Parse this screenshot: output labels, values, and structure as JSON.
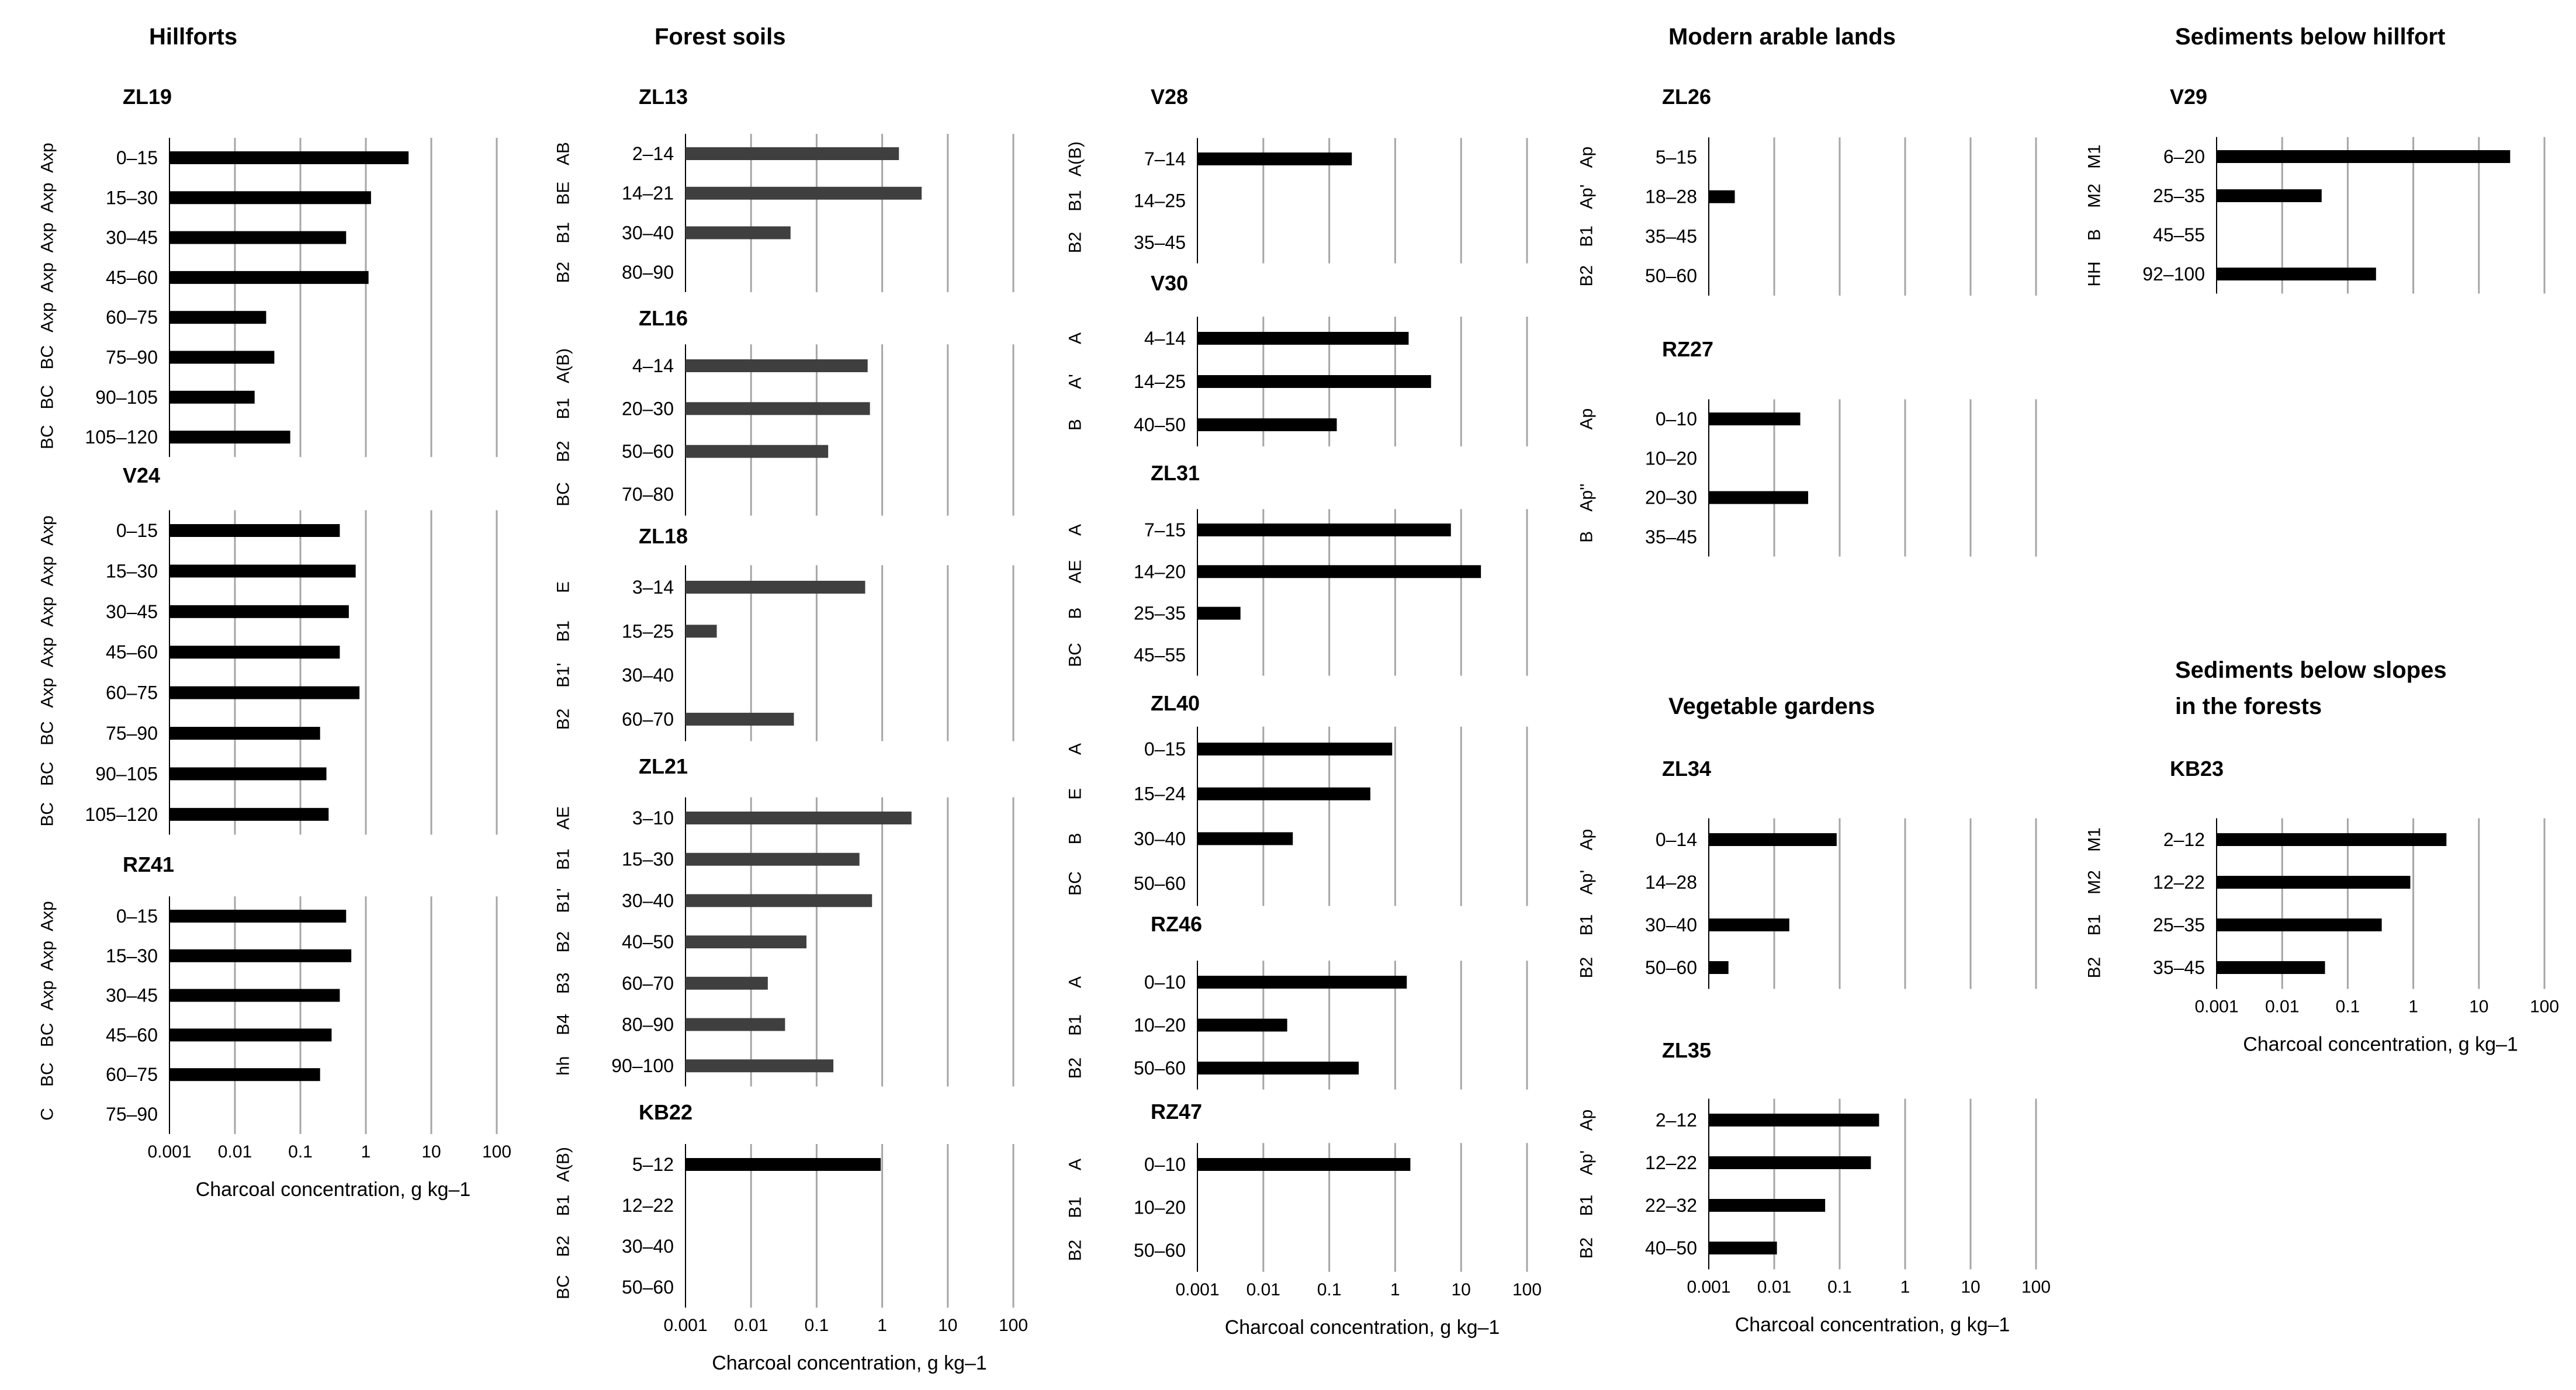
{
  "colors": {
    "bar_black": "#000000",
    "bar_gray": "#3f3f3f",
    "grid": "#a6a6a6",
    "axis": "#000000"
  },
  "x_axis": {
    "scale": "log10",
    "range": [
      0.001,
      100
    ],
    "tick_values": [
      0.001,
      0.01,
      0.1,
      1,
      10,
      100
    ],
    "tick_labels": [
      "0.001",
      "0.01",
      "0.1",
      "1",
      "10",
      "100"
    ],
    "label": "Charcoal concentration, g kg–1"
  },
  "group_titles": {
    "hillforts": "Hillforts",
    "forest": "Forest soils",
    "arable": "Modern arable lands",
    "sed_hill": "Sediments below hillfort",
    "veg": "Vegetable gardens",
    "sed_slopes_1": "Sediments below slopes",
    "sed_slopes_2": "in the forests"
  },
  "chart_data": [
    {
      "type": "bar",
      "orientation": "horizontal",
      "title": "ZL19",
      "group": "Hillforts",
      "categories": [
        "0–15",
        "15–30",
        "30–45",
        "45–60",
        "60–75",
        "75–90",
        "90–105",
        "105–120"
      ],
      "horizons": [
        "Axp",
        "Axp",
        "Axp",
        "Axp",
        "Axp",
        "BC",
        "BC",
        "BC"
      ],
      "values": [
        4.5,
        1.2,
        0.5,
        1.1,
        0.03,
        0.04,
        0.02,
        0.07
      ]
    },
    {
      "type": "bar",
      "orientation": "horizontal",
      "title": "V24",
      "group": "Hillforts",
      "categories": [
        "0–15",
        "15–30",
        "30–45",
        "45–60",
        "60–75",
        "75–90",
        "90–105",
        "105–120"
      ],
      "horizons": [
        "Axp",
        "Axp",
        "Axp",
        "Axp",
        "Axp",
        "BC",
        "BC",
        "BC"
      ],
      "values": [
        0.4,
        0.7,
        0.55,
        0.4,
        0.8,
        0.2,
        0.25,
        0.27
      ]
    },
    {
      "type": "bar",
      "orientation": "horizontal",
      "title": "RZ41",
      "group": "Hillforts",
      "categories": [
        "0–15",
        "15–30",
        "30–45",
        "45–60",
        "60–75",
        "75–90"
      ],
      "horizons": [
        "Axp",
        "Axp",
        "Axp",
        "BC",
        "BC",
        "C"
      ],
      "values": [
        0.5,
        0.6,
        0.4,
        0.3,
        0.2,
        null
      ]
    },
    {
      "type": "bar",
      "orientation": "horizontal",
      "title": "ZL13",
      "group": "Forest soils",
      "categories": [
        "2–14",
        "14–21",
        "30–40",
        "80–90"
      ],
      "horizons": [
        "AB",
        "BE",
        "B1",
        "B2"
      ],
      "values": [
        1.8,
        4.0,
        0.04,
        null
      ]
    },
    {
      "type": "bar",
      "orientation": "horizontal",
      "title": "ZL16",
      "group": "Forest soils",
      "categories": [
        "4–14",
        "20–30",
        "50–60",
        "70–80"
      ],
      "horizons": [
        "A(B)",
        "B1",
        "B2",
        "BC"
      ],
      "values": [
        0.6,
        0.65,
        0.15,
        null
      ]
    },
    {
      "type": "bar",
      "orientation": "horizontal",
      "title": "ZL18",
      "group": "Forest soils",
      "categories": [
        "3–14",
        "15–25",
        "30–40",
        "60–70"
      ],
      "horizons": [
        "E",
        "B1",
        "B1'",
        "B2"
      ],
      "values": [
        0.55,
        0.003,
        null,
        0.045
      ]
    },
    {
      "type": "bar",
      "orientation": "horizontal",
      "title": "ZL21",
      "group": "Forest soils",
      "categories": [
        "3–10",
        "15–30",
        "30–40",
        "40–50",
        "60–70",
        "80–90",
        "90–100"
      ],
      "horizons": [
        "AE",
        "B1",
        "B1'",
        "B2",
        "B3",
        "B4",
        "hh"
      ],
      "values": [
        2.8,
        0.45,
        0.7,
        0.07,
        0.018,
        0.033,
        0.18
      ]
    },
    {
      "type": "bar",
      "orientation": "horizontal",
      "title": "KB22",
      "group": "Forest soils",
      "categories": [
        "5–12",
        "12–22",
        "30–40",
        "50–60"
      ],
      "horizons": [
        "A(B)",
        "B1",
        "B2",
        "BC"
      ],
      "values": [
        0.95,
        null,
        null,
        null
      ]
    },
    {
      "type": "bar",
      "orientation": "horizontal",
      "title": "V28",
      "group": "Forest soils",
      "categories": [
        "7–14",
        "14–25",
        "35–45"
      ],
      "horizons": [
        "A(B)",
        "B1",
        "B2"
      ],
      "values": [
        0.22,
        null,
        null
      ]
    },
    {
      "type": "bar",
      "orientation": "horizontal",
      "title": "V30",
      "group": "Forest soils",
      "categories": [
        "4–14",
        "14–25",
        "40–50"
      ],
      "horizons": [
        "A",
        "A'",
        "B"
      ],
      "values": [
        1.6,
        3.5,
        0.13
      ]
    },
    {
      "type": "bar",
      "orientation": "horizontal",
      "title": "ZL31",
      "group": "Forest soils",
      "categories": [
        "7–15",
        "14–20",
        "25–35",
        "45–55"
      ],
      "horizons": [
        "A",
        "AE",
        "B",
        "BC"
      ],
      "values": [
        7.0,
        20.0,
        0.0045,
        null
      ]
    },
    {
      "type": "bar",
      "orientation": "horizontal",
      "title": "ZL40",
      "group": "Forest soils",
      "categories": [
        "0–15",
        "15–24",
        "30–40",
        "50–60"
      ],
      "horizons": [
        "A",
        "E",
        "B",
        "BC"
      ],
      "values": [
        0.9,
        0.42,
        0.028,
        null
      ]
    },
    {
      "type": "bar",
      "orientation": "horizontal",
      "title": "RZ46",
      "group": "Forest soils",
      "categories": [
        "0–10",
        "10–20",
        "50–60"
      ],
      "horizons": [
        "A",
        "B1",
        "B2"
      ],
      "values": [
        1.5,
        0.023,
        0.28
      ]
    },
    {
      "type": "bar",
      "orientation": "horizontal",
      "title": "RZ47",
      "group": "Forest soils",
      "categories": [
        "0–10",
        "10–20",
        "50–60"
      ],
      "horizons": [
        "A",
        "B1",
        "B2"
      ],
      "values": [
        1.7,
        null,
        null
      ]
    },
    {
      "type": "bar",
      "orientation": "horizontal",
      "title": "ZL26",
      "group": "Modern arable lands",
      "categories": [
        "5–15",
        "18–28",
        "35–45",
        "50–60"
      ],
      "horizons": [
        "Ap",
        "Ap'",
        "B1",
        "B2"
      ],
      "values": [
        null,
        0.0025,
        null,
        null
      ]
    },
    {
      "type": "bar",
      "orientation": "horizontal",
      "title": "RZ27",
      "group": "Modern arable lands",
      "categories": [
        "0–10",
        "10–20",
        "20–30",
        "35–45"
      ],
      "horizons": [
        "Ap",
        "",
        "Ap''",
        "B"
      ],
      "values": [
        0.025,
        null,
        0.033,
        null
      ]
    },
    {
      "type": "bar",
      "orientation": "horizontal",
      "title": "V29",
      "group": "Sediments below hillfort",
      "categories": [
        "6–20",
        "25–35",
        "45–55",
        "92–100"
      ],
      "horizons": [
        "M1",
        "M2",
        "B",
        "HH"
      ],
      "values": [
        30.0,
        0.04,
        null,
        0.27
      ]
    },
    {
      "type": "bar",
      "orientation": "horizontal",
      "title": "ZL34",
      "group": "Vegetable gardens",
      "categories": [
        "0–14",
        "14–28",
        "30–40",
        "50–60"
      ],
      "horizons": [
        "Ap",
        "Ap'",
        "B1",
        "B2"
      ],
      "values": [
        0.09,
        null,
        0.017,
        0.002
      ]
    },
    {
      "type": "bar",
      "orientation": "horizontal",
      "title": "ZL35",
      "group": "Vegetable gardens",
      "categories": [
        "2–12",
        "12–22",
        "22–32",
        "40–50"
      ],
      "horizons": [
        "Ap",
        "Ap'",
        "B1",
        "B2"
      ],
      "values": [
        0.4,
        0.3,
        0.06,
        0.011
      ]
    },
    {
      "type": "bar",
      "orientation": "horizontal",
      "title": "KB23",
      "group": "Sediments below slopes in the forests",
      "categories": [
        "2–12",
        "12–22",
        "25–35",
        "35–45"
      ],
      "horizons": [
        "M1",
        "M2",
        "B1",
        "B2"
      ],
      "values": [
        3.2,
        0.9,
        0.33,
        0.045
      ]
    }
  ]
}
